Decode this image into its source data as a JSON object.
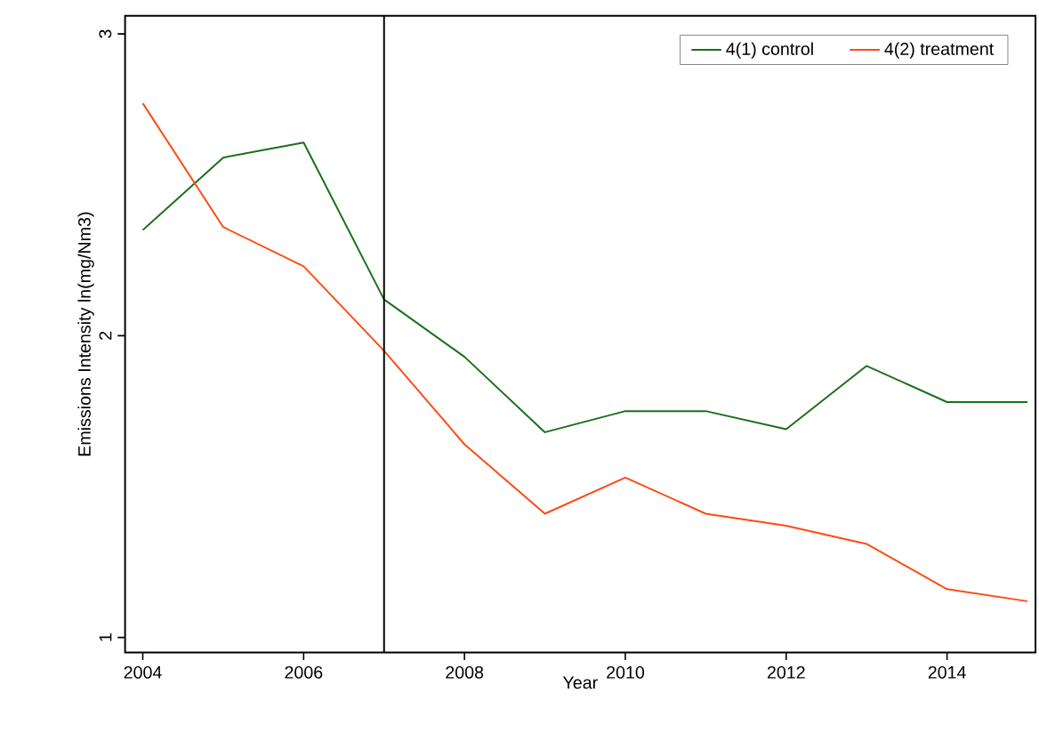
{
  "chart_data": {
    "type": "line",
    "xlabel": "Year",
    "ylabel": "Emissions Intensity ln(mg/Nm3)",
    "x": [
      2004,
      2005,
      2006,
      2007,
      2008,
      2009,
      2010,
      2011,
      2012,
      2013,
      2014,
      2015
    ],
    "series": [
      {
        "name": "4(1) control",
        "color": "#1a6e1a",
        "values": [
          2.35,
          2.59,
          2.64,
          2.12,
          1.93,
          1.68,
          1.75,
          1.75,
          1.69,
          1.9,
          1.78,
          1.78
        ]
      },
      {
        "name": "4(2) treatment",
        "color": "#ff4a14",
        "values": [
          2.77,
          2.36,
          2.23,
          1.95,
          1.64,
          1.41,
          1.53,
          1.41,
          1.37,
          1.31,
          1.16,
          1.12
        ]
      }
    ],
    "xlim": [
      2003.78,
      2015.1
    ],
    "ylim": [
      0.95,
      3.06
    ],
    "xticks": [
      2004,
      2006,
      2008,
      2010,
      2012,
      2014
    ],
    "yticks": [
      1,
      2,
      3
    ],
    "ref_lines": [
      {
        "axis": "x",
        "value": 2007,
        "color": "#000000"
      }
    ],
    "legend": "top right",
    "grid": false,
    "marker": "none",
    "line_style": "solid"
  }
}
